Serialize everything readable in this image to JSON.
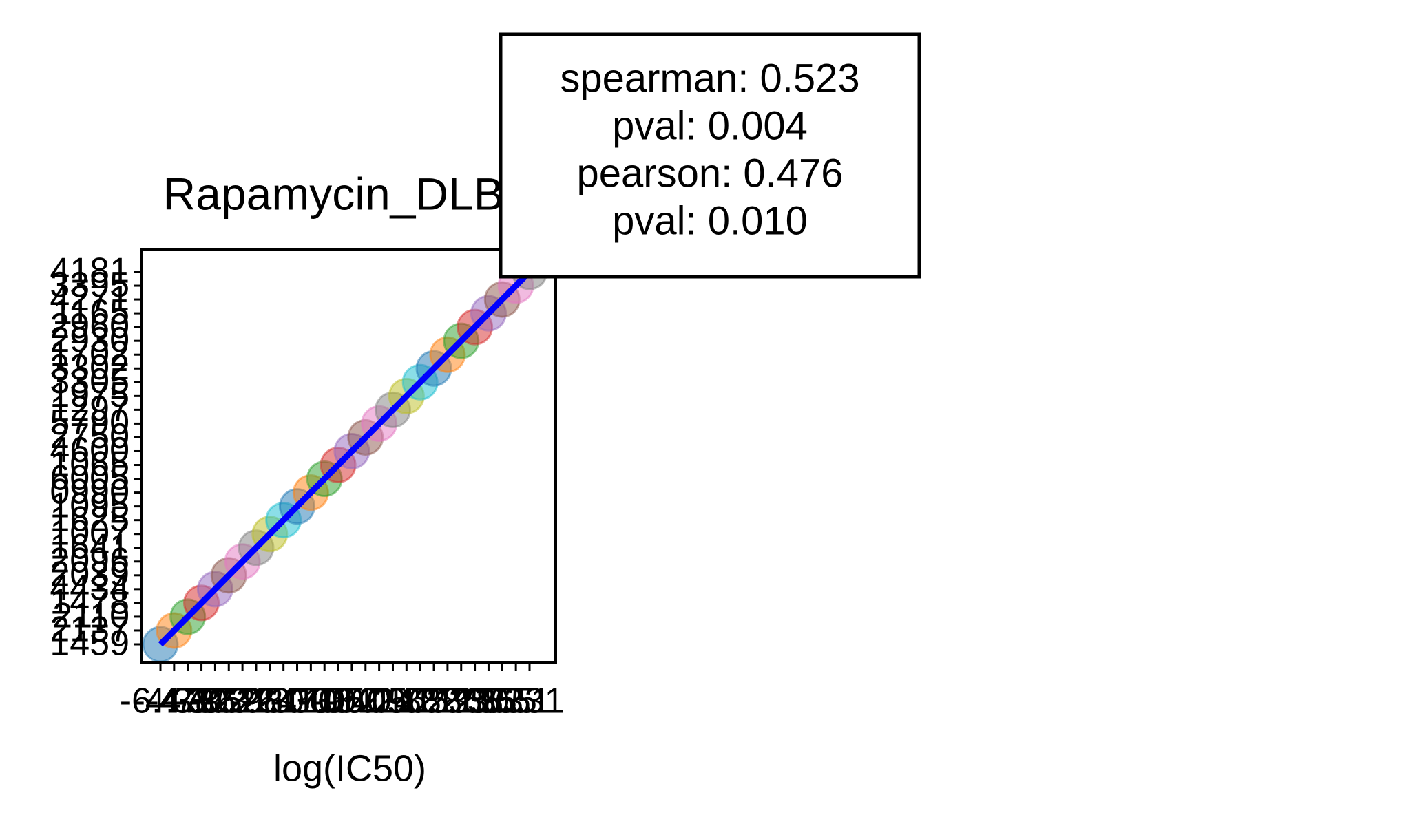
{
  "chart_data": {
    "type": "scatter",
    "title": "Rapamycin_DLBC",
    "x_label": "log(IC50)",
    "x": [
      "-6.47",
      "-4.78",
      "-4.30",
      "-3.95",
      "-3.62",
      "-3.31",
      "-2.98",
      "-2.64",
      "-2.33",
      "-2.01",
      "-1.70",
      "-1.38",
      "-1.05",
      "-0.72",
      "-0.41",
      "-0.09",
      "0.24",
      "0.56",
      "0.88",
      "1.21",
      "1.53",
      "1.86",
      "2.18",
      "2.50",
      "2.83",
      "3.55",
      "5.51",
      "6.31"
    ],
    "y": [
      "1459",
      "2137",
      "2110",
      "1478",
      "4434",
      "2039",
      "2096",
      "1641",
      "1007",
      "1625",
      "1095",
      "0990",
      "6005",
      "1065",
      "4600",
      "2750",
      "5790",
      "1297",
      "1975",
      "3305",
      "3302",
      "1702",
      "2930",
      "2960",
      "1165",
      "4271",
      "3395",
      "4181"
    ],
    "colors": [
      "#1f77b4",
      "#ff7f0e",
      "#2ca02c",
      "#d62728",
      "#9467bd",
      "#8c564b",
      "#e377c2",
      "#7f7f7f",
      "#bcbd22",
      "#17becf"
    ],
    "fit_line_color": "#0000ff",
    "annotation": [
      "spearman: 0.523",
      "pval: 0.004",
      "pearson: 0.476",
      "pval: 0.010"
    ]
  }
}
